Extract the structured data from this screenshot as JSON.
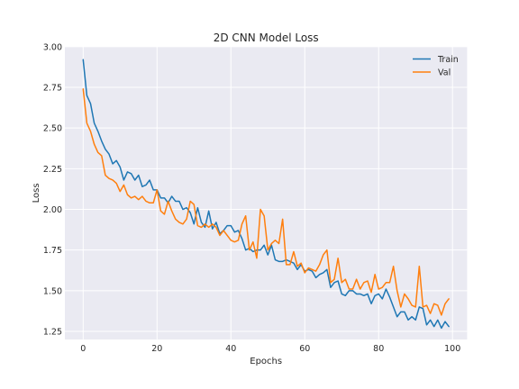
{
  "chart_data": {
    "type": "line",
    "title": "2D CNN Model Loss",
    "xlabel": "Epochs",
    "ylabel": "Loss",
    "xlim": [
      -4.95,
      103.95
    ],
    "ylim": [
      1.2,
      3.0
    ],
    "xticks": [
      0,
      20,
      40,
      60,
      80,
      100
    ],
    "xtick_labels": [
      "0",
      "20",
      "40",
      "60",
      "80",
      "100"
    ],
    "yticks": [
      1.25,
      1.5,
      1.75,
      2.0,
      2.25,
      2.5,
      2.75,
      3.0
    ],
    "ytick_labels": [
      "1.25",
      "1.50",
      "1.75",
      "2.00",
      "2.25",
      "2.50",
      "2.75",
      "3.00"
    ],
    "grid": true,
    "legend_position": "top-right",
    "colors": {
      "plot_bg": "#eaeaf2",
      "grid": "#ffffff",
      "train": "#1f77b4",
      "val": "#ff7f0e"
    },
    "x": [
      0,
      1,
      2,
      3,
      4,
      5,
      6,
      7,
      8,
      9,
      10,
      11,
      12,
      13,
      14,
      15,
      16,
      17,
      18,
      19,
      20,
      21,
      22,
      23,
      24,
      25,
      26,
      27,
      28,
      29,
      30,
      31,
      32,
      33,
      34,
      35,
      36,
      37,
      38,
      39,
      40,
      41,
      42,
      43,
      44,
      45,
      46,
      47,
      48,
      49,
      50,
      51,
      52,
      53,
      54,
      55,
      56,
      57,
      58,
      59,
      60,
      61,
      62,
      63,
      64,
      65,
      66,
      67,
      68,
      69,
      70,
      71,
      72,
      73,
      74,
      75,
      76,
      77,
      78,
      79,
      80,
      81,
      82,
      83,
      84,
      85,
      86,
      87,
      88,
      89,
      90,
      91,
      92,
      93,
      94,
      95,
      96,
      97,
      98,
      99
    ],
    "series": [
      {
        "name": "Train",
        "color": "#1f77b4",
        "values": [
          2.92,
          2.7,
          2.65,
          2.53,
          2.48,
          2.42,
          2.37,
          2.34,
          2.28,
          2.3,
          2.26,
          2.18,
          2.23,
          2.22,
          2.18,
          2.21,
          2.14,
          2.15,
          2.18,
          2.12,
          2.12,
          2.07,
          2.07,
          2.04,
          2.08,
          2.05,
          2.05,
          2.0,
          2.01,
          1.98,
          1.91,
          2.01,
          1.92,
          1.89,
          1.99,
          1.88,
          1.92,
          1.85,
          1.87,
          1.9,
          1.9,
          1.86,
          1.87,
          1.82,
          1.75,
          1.76,
          1.74,
          1.75,
          1.75,
          1.78,
          1.72,
          1.78,
          1.69,
          1.68,
          1.68,
          1.69,
          1.68,
          1.67,
          1.63,
          1.66,
          1.62,
          1.63,
          1.62,
          1.58,
          1.6,
          1.61,
          1.63,
          1.52,
          1.55,
          1.56,
          1.48,
          1.47,
          1.5,
          1.5,
          1.48,
          1.48,
          1.47,
          1.48,
          1.42,
          1.47,
          1.48,
          1.45,
          1.51,
          1.46,
          1.4,
          1.34,
          1.37,
          1.37,
          1.32,
          1.34,
          1.32,
          1.4,
          1.39,
          1.29,
          1.32,
          1.28,
          1.32,
          1.27,
          1.31,
          1.28
        ]
      },
      {
        "name": "Val",
        "color": "#ff7f0e",
        "values": [
          2.74,
          2.53,
          2.48,
          2.4,
          2.35,
          2.33,
          2.21,
          2.19,
          2.18,
          2.16,
          2.11,
          2.15,
          2.09,
          2.07,
          2.08,
          2.06,
          2.08,
          2.05,
          2.04,
          2.04,
          2.12,
          1.99,
          1.97,
          2.05,
          1.99,
          1.94,
          1.92,
          1.91,
          1.94,
          2.05,
          2.03,
          1.9,
          1.89,
          1.91,
          1.89,
          1.91,
          1.89,
          1.84,
          1.87,
          1.84,
          1.81,
          1.8,
          1.81,
          1.91,
          1.96,
          1.75,
          1.8,
          1.7,
          2.0,
          1.96,
          1.75,
          1.79,
          1.81,
          1.79,
          1.94,
          1.66,
          1.66,
          1.74,
          1.65,
          1.67,
          1.61,
          1.64,
          1.63,
          1.62,
          1.66,
          1.72,
          1.75,
          1.55,
          1.57,
          1.7,
          1.55,
          1.57,
          1.51,
          1.51,
          1.57,
          1.51,
          1.55,
          1.56,
          1.49,
          1.6,
          1.51,
          1.52,
          1.55,
          1.55,
          1.65,
          1.5,
          1.4,
          1.48,
          1.45,
          1.41,
          1.4,
          1.65,
          1.4,
          1.41,
          1.36,
          1.42,
          1.41,
          1.35,
          1.42,
          1.45
        ]
      }
    ]
  }
}
